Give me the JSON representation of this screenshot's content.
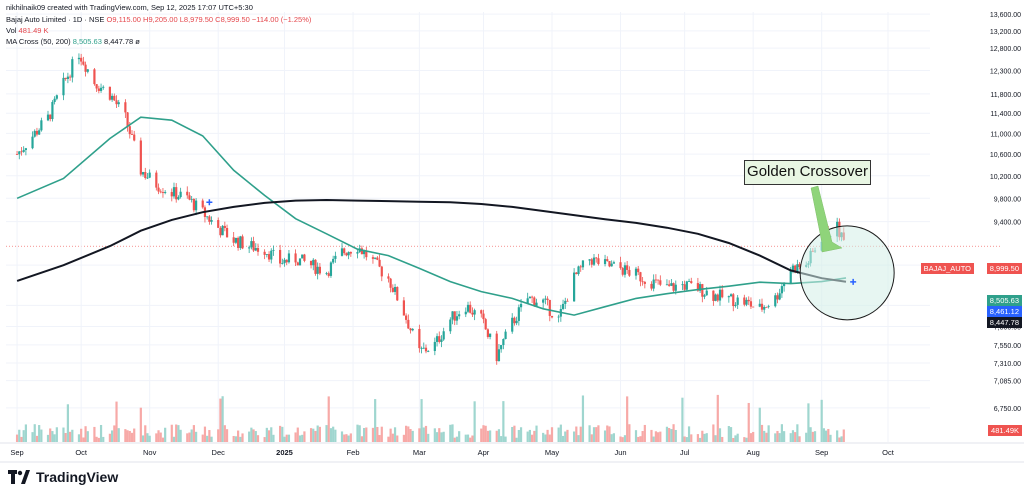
{
  "header": {
    "attribution": "nikhilnaik09 created with TradingView.com, Sep 12, 2025 17:07 UTC+5:30",
    "symbol_line": "Bajaj Auto Limited · 1D · NSE",
    "ohlc": "O9,115.00  H9,205.00  L8,979.50  C8,999.50  −114.00 (−1.25%)",
    "vol_label": "Vol",
    "vol_value": "481.49 K",
    "ma_label": "MA Cross (50, 200)",
    "ma50_value": "8,505.63",
    "ma200_value": "8,447.78",
    "ma_icon": "eye-slash-icon"
  },
  "callout": {
    "text": "Golden Crossover"
  },
  "branding": {
    "name": "TradingView"
  },
  "price_tags": {
    "symbol": "BAJAJ_AUTO",
    "last_price": "8,999.50",
    "ma50": "8,505.63",
    "crossover_price": "8,461.12",
    "ma200": "8,447.78",
    "volume": "481.49K"
  },
  "colors": {
    "up": "#26a69a",
    "down": "#ef5350",
    "ma50": "#2fa08b",
    "ma200": "#131722",
    "highlight_fill": "#d4efe7",
    "arrow": "#8fd47a"
  },
  "chart_data": {
    "type": "candlestick",
    "y_axis_ticks": [
      "13,600.00",
      "13,200.00",
      "12,800.00",
      "12,300.00",
      "11,800.00",
      "11,400.00",
      "11,000.00",
      "10,600.00",
      "10,200.00",
      "9,800.00",
      "9,400.00",
      "8,700.00",
      "8,100.00",
      "7,800.00",
      "7,550.00",
      "7,310.00",
      "7,085.00",
      "6,750.00"
    ],
    "x_axis_ticks": [
      "Sep",
      "Oct",
      "Nov",
      "Dec",
      "2025",
      "Feb",
      "Mar",
      "Apr",
      "May",
      "Jun",
      "Jul",
      "Aug",
      "Sep",
      "Oct"
    ],
    "ylim": [
      6750,
      13600
    ],
    "close_series": [
      {
        "date": "2024-09-02",
        "close": 10600
      },
      {
        "date": "2024-09-09",
        "close": 10950
      },
      {
        "date": "2024-09-16",
        "close": 11300
      },
      {
        "date": "2024-09-23",
        "close": 12000
      },
      {
        "date": "2024-09-30",
        "close": 12700
      },
      {
        "date": "2024-10-07",
        "close": 12050
      },
      {
        "date": "2024-10-14",
        "close": 11800
      },
      {
        "date": "2024-10-21",
        "close": 11300
      },
      {
        "date": "2024-10-28",
        "close": 10300
      },
      {
        "date": "2024-11-04",
        "close": 10050
      },
      {
        "date": "2024-11-11",
        "close": 9900
      },
      {
        "date": "2024-11-18",
        "close": 9800
      },
      {
        "date": "2024-11-25",
        "close": 9550
      },
      {
        "date": "2024-12-02",
        "close": 9300
      },
      {
        "date": "2024-12-09",
        "close": 9100
      },
      {
        "date": "2024-12-16",
        "close": 9000
      },
      {
        "date": "2024-12-23",
        "close": 8950
      },
      {
        "date": "2024-12-30",
        "close": 8750
      },
      {
        "date": "2025-01-06",
        "close": 8800
      },
      {
        "date": "2025-01-13",
        "close": 8700
      },
      {
        "date": "2025-01-20",
        "close": 8600
      },
      {
        "date": "2025-01-27",
        "close": 8900
      },
      {
        "date": "2025-02-03",
        "close": 9000
      },
      {
        "date": "2025-02-10",
        "close": 8750
      },
      {
        "date": "2025-02-17",
        "close": 8500
      },
      {
        "date": "2025-02-24",
        "close": 8000
      },
      {
        "date": "2025-03-03",
        "close": 7450
      },
      {
        "date": "2025-03-10",
        "close": 7550
      },
      {
        "date": "2025-03-17",
        "close": 7900
      },
      {
        "date": "2025-03-24",
        "close": 8100
      },
      {
        "date": "2025-03-31",
        "close": 7900
      },
      {
        "date": "2025-04-07",
        "close": 7400
      },
      {
        "date": "2025-04-14",
        "close": 7850
      },
      {
        "date": "2025-04-21",
        "close": 8200
      },
      {
        "date": "2025-04-28",
        "close": 8150
      },
      {
        "date": "2025-05-05",
        "close": 7900
      },
      {
        "date": "2025-05-12",
        "close": 8500
      },
      {
        "date": "2025-05-19",
        "close": 8800
      },
      {
        "date": "2025-05-26",
        "close": 8700
      },
      {
        "date": "2025-06-02",
        "close": 8650
      },
      {
        "date": "2025-06-09",
        "close": 8550
      },
      {
        "date": "2025-06-16",
        "close": 8450
      },
      {
        "date": "2025-06-23",
        "close": 8350
      },
      {
        "date": "2025-06-30",
        "close": 8400
      },
      {
        "date": "2025-07-07",
        "close": 8350
      },
      {
        "date": "2025-07-14",
        "close": 8250
      },
      {
        "date": "2025-07-21",
        "close": 8200
      },
      {
        "date": "2025-07-28",
        "close": 8150
      },
      {
        "date": "2025-08-04",
        "close": 8050
      },
      {
        "date": "2025-08-11",
        "close": 8200
      },
      {
        "date": "2025-08-18",
        "close": 8650
      },
      {
        "date": "2025-08-25",
        "close": 8700
      },
      {
        "date": "2025-09-01",
        "close": 9150
      },
      {
        "date": "2025-09-08",
        "close": 9300
      },
      {
        "date": "2025-09-12",
        "close": 8999.5
      }
    ],
    "series": [
      {
        "name": "MA 50",
        "points": [
          {
            "date": "2024-09-02",
            "value": 9800
          },
          {
            "date": "2024-09-23",
            "value": 10150
          },
          {
            "date": "2024-10-14",
            "value": 10900
          },
          {
            "date": "2024-10-28",
            "value": 11320
          },
          {
            "date": "2024-11-11",
            "value": 11260
          },
          {
            "date": "2024-11-25",
            "value": 10950
          },
          {
            "date": "2024-12-09",
            "value": 10300
          },
          {
            "date": "2024-12-23",
            "value": 9850
          },
          {
            "date": "2025-01-06",
            "value": 9450
          },
          {
            "date": "2025-01-20",
            "value": 9200
          },
          {
            "date": "2025-02-03",
            "value": 8950
          },
          {
            "date": "2025-02-17",
            "value": 8850
          },
          {
            "date": "2025-03-03",
            "value": 8650
          },
          {
            "date": "2025-03-17",
            "value": 8450
          },
          {
            "date": "2025-03-31",
            "value": 8300
          },
          {
            "date": "2025-04-14",
            "value": 8200
          },
          {
            "date": "2025-04-28",
            "value": 8050
          },
          {
            "date": "2025-05-12",
            "value": 7960
          },
          {
            "date": "2025-05-26",
            "value": 8080
          },
          {
            "date": "2025-06-09",
            "value": 8200
          },
          {
            "date": "2025-06-23",
            "value": 8270
          },
          {
            "date": "2025-07-07",
            "value": 8330
          },
          {
            "date": "2025-07-21",
            "value": 8380
          },
          {
            "date": "2025-08-04",
            "value": 8440
          },
          {
            "date": "2025-08-18",
            "value": 8420
          },
          {
            "date": "2025-09-01",
            "value": 8450
          },
          {
            "date": "2025-09-12",
            "value": 8505.63
          }
        ]
      },
      {
        "name": "MA 200",
        "points": [
          {
            "date": "2024-09-02",
            "value": 8460
          },
          {
            "date": "2024-09-23",
            "value": 8700
          },
          {
            "date": "2024-10-14",
            "value": 9000
          },
          {
            "date": "2024-10-28",
            "value": 9250
          },
          {
            "date": "2024-11-11",
            "value": 9430
          },
          {
            "date": "2024-11-25",
            "value": 9560
          },
          {
            "date": "2024-12-09",
            "value": 9650
          },
          {
            "date": "2024-12-23",
            "value": 9720
          },
          {
            "date": "2025-01-06",
            "value": 9760
          },
          {
            "date": "2025-01-20",
            "value": 9770
          },
          {
            "date": "2025-02-03",
            "value": 9760
          },
          {
            "date": "2025-02-17",
            "value": 9750
          },
          {
            "date": "2025-03-03",
            "value": 9740
          },
          {
            "date": "2025-03-17",
            "value": 9730
          },
          {
            "date": "2025-03-31",
            "value": 9700
          },
          {
            "date": "2025-04-14",
            "value": 9650
          },
          {
            "date": "2025-04-28",
            "value": 9580
          },
          {
            "date": "2025-05-12",
            "value": 9510
          },
          {
            "date": "2025-05-26",
            "value": 9440
          },
          {
            "date": "2025-06-09",
            "value": 9380
          },
          {
            "date": "2025-06-23",
            "value": 9300
          },
          {
            "date": "2025-07-07",
            "value": 9200
          },
          {
            "date": "2025-07-21",
            "value": 9050
          },
          {
            "date": "2025-08-04",
            "value": 8850
          },
          {
            "date": "2025-08-18",
            "value": 8620
          },
          {
            "date": "2025-09-01",
            "value": 8500
          },
          {
            "date": "2025-09-12",
            "value": 8447.78
          }
        ]
      }
    ],
    "annotations": [
      {
        "text": "Golden Crossover",
        "date": "2025-09-08",
        "value": 8461.12
      }
    ],
    "grid": true,
    "legend": "top-left"
  }
}
